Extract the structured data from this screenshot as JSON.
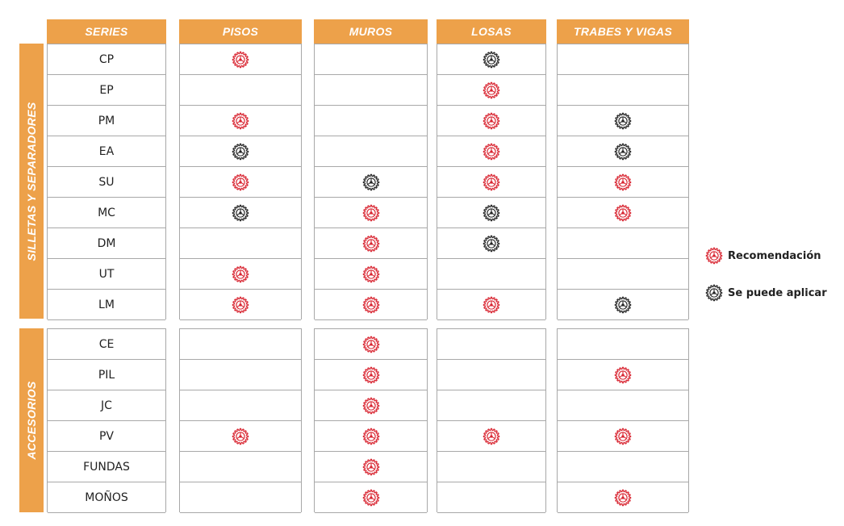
{
  "colors": {
    "header": "#eda14a",
    "recommended": "#d8232f",
    "applicable": "#222222"
  },
  "headers": [
    "SERIES",
    "PISOS",
    "MUROS",
    "LOSAS",
    "TRABES Y VIGAS"
  ],
  "groups": [
    {
      "label": "SILLETAS Y SEPARADORES",
      "rows": [
        {
          "series": "CP",
          "pisos": "recommended",
          "muros": "",
          "losas": "applicable",
          "trabes": ""
        },
        {
          "series": "EP",
          "pisos": "",
          "muros": "",
          "losas": "recommended",
          "trabes": ""
        },
        {
          "series": "PM",
          "pisos": "recommended",
          "muros": "",
          "losas": "recommended",
          "trabes": "applicable"
        },
        {
          "series": "EA",
          "pisos": "applicable",
          "muros": "",
          "losas": "recommended",
          "trabes": "applicable"
        },
        {
          "series": "SU",
          "pisos": "recommended",
          "muros": "applicable",
          "losas": "recommended",
          "trabes": "recommended"
        },
        {
          "series": "MC",
          "pisos": "applicable",
          "muros": "recommended",
          "losas": "applicable",
          "trabes": "recommended"
        },
        {
          "series": "DM",
          "pisos": "",
          "muros": "recommended",
          "losas": "applicable",
          "trabes": ""
        },
        {
          "series": "UT",
          "pisos": "recommended",
          "muros": "recommended",
          "losas": "",
          "trabes": ""
        },
        {
          "series": "LM",
          "pisos": "recommended",
          "muros": "recommended",
          "losas": "recommended",
          "trabes": "applicable"
        }
      ]
    },
    {
      "label": "ACCESORIOS",
      "rows": [
        {
          "series": "CE",
          "pisos": "",
          "muros": "recommended",
          "losas": "",
          "trabes": ""
        },
        {
          "series": "PIL",
          "pisos": "",
          "muros": "recommended",
          "losas": "",
          "trabes": "recommended"
        },
        {
          "series": "JC",
          "pisos": "",
          "muros": "recommended",
          "losas": "",
          "trabes": ""
        },
        {
          "series": "PV",
          "pisos": "recommended",
          "muros": "recommended",
          "losas": "recommended",
          "trabes": "recommended"
        },
        {
          "series": "FUNDAS",
          "pisos": "",
          "muros": "recommended",
          "losas": "",
          "trabes": ""
        },
        {
          "series": "MOÑOS",
          "pisos": "",
          "muros": "recommended",
          "losas": "",
          "trabes": "recommended"
        }
      ]
    }
  ],
  "legend": {
    "recommended": {
      "icon": "gear-icon",
      "label": "Recomendación"
    },
    "applicable": {
      "icon": "gear-icon",
      "label": "Se puede aplicar"
    }
  }
}
